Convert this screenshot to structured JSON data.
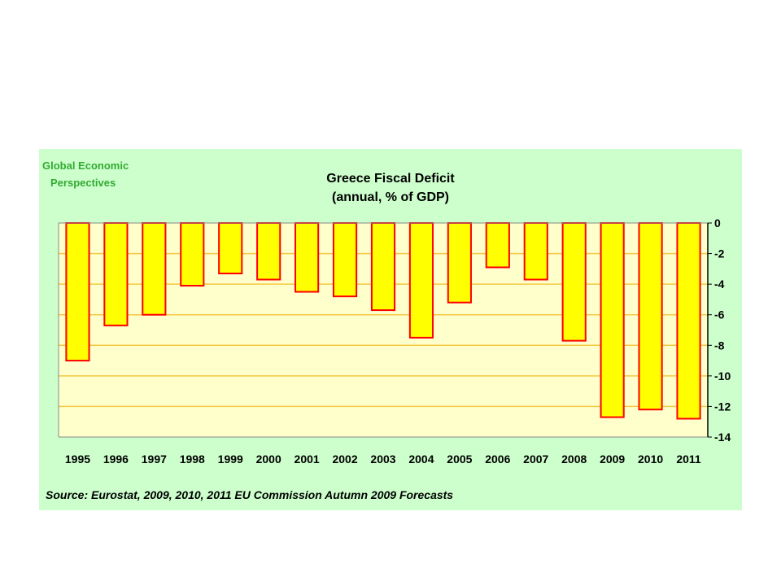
{
  "brand": {
    "line1": "Global Economic",
    "line2": "Perspectives"
  },
  "chart_data": {
    "type": "bar",
    "title": "Greece Fiscal Deficit",
    "subtitle": "(annual, % of GDP)",
    "xlabel": "",
    "ylabel": "",
    "categories": [
      "1995",
      "1996",
      "1997",
      "1998",
      "1999",
      "2000",
      "2001",
      "2002",
      "2003",
      "2004",
      "2005",
      "2006",
      "2007",
      "2008",
      "2009",
      "2010",
      "2011"
    ],
    "values": [
      -9.0,
      -6.7,
      -6.0,
      -4.1,
      -3.3,
      -3.7,
      -4.5,
      -4.8,
      -5.7,
      -7.5,
      -5.2,
      -2.9,
      -3.7,
      -7.7,
      -12.7,
      -12.2,
      -12.8
    ],
    "ylim": [
      -14,
      0
    ],
    "yticks": [
      "0",
      "-2",
      "-4",
      "-6",
      "-8",
      "-10",
      "-12",
      "-14"
    ],
    "grid": true,
    "y_axis_side": "right",
    "source": "Source: Eurostat, 2009, 2010, 2011 EU Commission Autumn 2009 Forecasts"
  },
  "colors": {
    "panel_background": "#ccffcc",
    "plot_background": "#ffffcc",
    "gridline": "#f5c842",
    "bar_fill": "#ffff00",
    "bar_border": "#ff0000",
    "brand_text": "#33aa33"
  }
}
